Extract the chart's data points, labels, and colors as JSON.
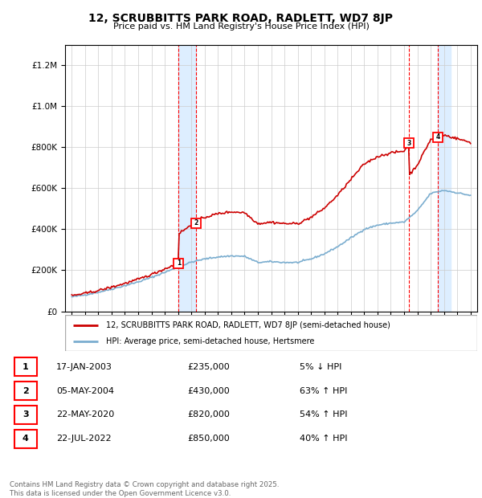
{
  "title": "12, SCRUBBITTS PARK ROAD, RADLETT, WD7 8JP",
  "subtitle": "Price paid vs. HM Land Registry's House Price Index (HPI)",
  "hpi_label": "HPI: Average price, semi-detached house, Hertsmere",
  "prop_label": "12, SCRUBBITTS PARK ROAD, RADLETT, WD7 8JP (semi-detached house)",
  "transactions": [
    {
      "num": 1,
      "date": "17-JAN-2003",
      "price": 235000,
      "pct": "5%",
      "dir": "↓"
    },
    {
      "num": 2,
      "date": "05-MAY-2004",
      "price": 430000,
      "pct": "63%",
      "dir": "↑"
    },
    {
      "num": 3,
      "date": "22-MAY-2020",
      "price": 820000,
      "pct": "54%",
      "dir": "↑"
    },
    {
      "num": 4,
      "date": "22-JUL-2022",
      "price": 850000,
      "pct": "40%",
      "dir": "↑"
    }
  ],
  "transaction_years": [
    2003.04,
    2004.35,
    2020.39,
    2022.55
  ],
  "transaction_prices": [
    235000,
    430000,
    820000,
    850000
  ],
  "shade_ranges": [
    [
      2003.04,
      2004.35
    ],
    [
      2022.55,
      2023.5
    ]
  ],
  "prop_color": "#cc0000",
  "hpi_color": "#7aadcf",
  "background_color": "#ffffff",
  "grid_color": "#cccccc",
  "shade_color": "#ddeeff",
  "footer": "Contains HM Land Registry data © Crown copyright and database right 2025.\nThis data is licensed under the Open Government Licence v3.0.",
  "ylim": [
    0,
    1300000
  ],
  "xlim_start": 1994.5,
  "xlim_end": 2025.5
}
